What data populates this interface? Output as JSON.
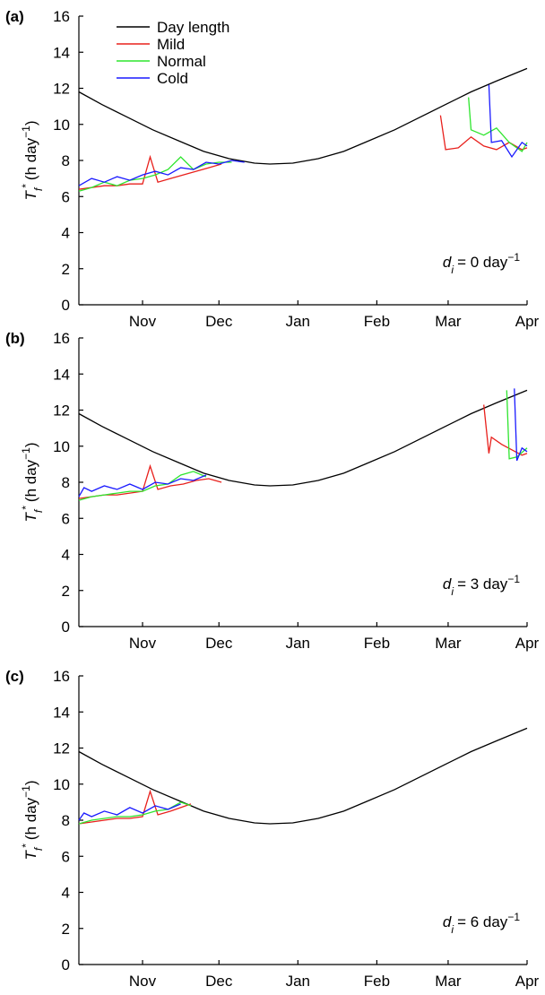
{
  "chart_data": [
    {
      "type": "line",
      "panel_label": "(a)",
      "y_label": {
        "symbol": "T",
        "subscript": "f",
        "superscript": "*",
        "text": "(h day",
        "unit_superscript": "−1",
        "close": ")"
      },
      "annotation": {
        "symbol": "d",
        "subscript": "i",
        "text": "= 0 day",
        "superscript": "−1"
      },
      "xlim": [
        6,
        182
      ],
      "ylim": [
        0,
        16
      ],
      "yticks": [
        0,
        2,
        4,
        6,
        8,
        10,
        12,
        14,
        16
      ],
      "xticks": [
        {
          "value": 31,
          "label": "Nov"
        },
        {
          "value": 61,
          "label": "Dec"
        },
        {
          "value": 92,
          "label": "Jan"
        },
        {
          "value": 123,
          "label": "Feb"
        },
        {
          "value": 151,
          "label": "Mar"
        },
        {
          "value": 182,
          "label": "Apr"
        }
      ],
      "legend": "upper-left",
      "series": [
        {
          "name": "Day length",
          "color": "#000000",
          "x": [
            6,
            15,
            25,
            35,
            45,
            55,
            65,
            75,
            81,
            90,
            100,
            110,
            120,
            130,
            140,
            150,
            160,
            170,
            182
          ],
          "values": [
            11.8,
            11.1,
            10.4,
            9.7,
            9.1,
            8.5,
            8.1,
            7.85,
            7.8,
            7.85,
            8.1,
            8.5,
            9.1,
            9.7,
            10.4,
            11.1,
            11.8,
            12.4,
            13.1
          ]
        },
        {
          "name": "Mild",
          "color": "#e8201c",
          "x": [
            6,
            11,
            16,
            21,
            26,
            31,
            34,
            37,
            42,
            47,
            52,
            57,
            62,
            null,
            148,
            150,
            155,
            160,
            165,
            170,
            175,
            180,
            182
          ],
          "values": [
            6.4,
            6.5,
            6.6,
            6.6,
            6.7,
            6.7,
            8.2,
            6.8,
            7.0,
            7.2,
            7.4,
            7.6,
            7.8,
            null,
            10.5,
            8.6,
            8.7,
            9.3,
            8.8,
            8.6,
            9.0,
            8.6,
            8.7
          ]
        },
        {
          "name": "Normal",
          "color": "#2ee52e",
          "x": [
            6,
            11,
            16,
            21,
            26,
            31,
            36,
            41,
            46,
            51,
            56,
            61,
            66,
            null,
            159,
            160,
            165,
            170,
            175,
            180,
            182
          ],
          "values": [
            6.3,
            6.5,
            6.8,
            6.6,
            6.9,
            7.0,
            7.2,
            7.5,
            8.2,
            7.5,
            7.8,
            7.9,
            7.9,
            null,
            11.5,
            9.7,
            9.4,
            9.8,
            9.0,
            8.5,
            9.0
          ]
        },
        {
          "name": "Cold",
          "color": "#1a1aff",
          "x": [
            6,
            11,
            16,
            21,
            26,
            31,
            36,
            41,
            46,
            51,
            56,
            61,
            66,
            71,
            null,
            167,
            168,
            172,
            176,
            180,
            182
          ],
          "values": [
            6.6,
            7.0,
            6.8,
            7.1,
            6.9,
            7.2,
            7.4,
            7.2,
            7.6,
            7.5,
            7.9,
            7.8,
            8.0,
            7.9,
            null,
            12.2,
            9.0,
            9.1,
            8.2,
            9.0,
            8.8
          ]
        }
      ]
    },
    {
      "type": "line",
      "panel_label": "(b)",
      "y_label": {
        "symbol": "T",
        "subscript": "f",
        "superscript": "*",
        "text": "(h day",
        "unit_superscript": "−1",
        "close": ")"
      },
      "annotation": {
        "symbol": "d",
        "subscript": "i",
        "text": "= 3 day",
        "superscript": "−1"
      },
      "xlim": [
        6,
        182
      ],
      "ylim": [
        0,
        16
      ],
      "yticks": [
        0,
        2,
        4,
        6,
        8,
        10,
        12,
        14,
        16
      ],
      "xticks": [
        {
          "value": 31,
          "label": "Nov"
        },
        {
          "value": 61,
          "label": "Dec"
        },
        {
          "value": 92,
          "label": "Jan"
        },
        {
          "value": 123,
          "label": "Feb"
        },
        {
          "value": 151,
          "label": "Mar"
        },
        {
          "value": 182,
          "label": "Apr"
        }
      ],
      "series": [
        {
          "color": "#000000",
          "x": [
            6,
            15,
            25,
            35,
            45,
            55,
            65,
            75,
            81,
            90,
            100,
            110,
            120,
            130,
            140,
            150,
            160,
            170,
            182
          ],
          "values": [
            11.8,
            11.1,
            10.4,
            9.7,
            9.1,
            8.5,
            8.1,
            7.85,
            7.8,
            7.85,
            8.1,
            8.5,
            9.1,
            9.7,
            10.4,
            11.1,
            11.8,
            12.4,
            13.1
          ]
        },
        {
          "color": "#e8201c",
          "x": [
            6,
            11,
            16,
            21,
            26,
            31,
            34,
            37,
            42,
            47,
            52,
            57,
            62,
            null,
            165,
            167,
            168,
            172,
            176,
            180,
            182
          ],
          "values": [
            7.1,
            7.2,
            7.3,
            7.3,
            7.4,
            7.5,
            8.9,
            7.6,
            7.8,
            7.9,
            8.1,
            8.2,
            8.0,
            null,
            12.3,
            9.6,
            10.5,
            10.1,
            9.8,
            9.5,
            9.6
          ]
        },
        {
          "color": "#2ee52e",
          "x": [
            6,
            11,
            16,
            21,
            26,
            31,
            36,
            41,
            46,
            51,
            56,
            null,
            174,
            175,
            178,
            182
          ],
          "values": [
            7.0,
            7.2,
            7.3,
            7.4,
            7.5,
            7.5,
            7.8,
            7.9,
            8.4,
            8.6,
            8.3,
            null,
            13.1,
            9.3,
            9.4,
            9.9
          ]
        },
        {
          "color": "#1a1aff",
          "x": [
            6,
            8,
            11,
            16,
            21,
            26,
            31,
            36,
            41,
            46,
            51,
            56,
            null,
            177,
            178,
            180,
            182
          ],
          "values": [
            7.2,
            7.7,
            7.5,
            7.8,
            7.6,
            7.9,
            7.6,
            8.0,
            7.9,
            8.2,
            8.1,
            8.4,
            null,
            13.2,
            9.2,
            9.9,
            9.7
          ]
        }
      ]
    },
    {
      "type": "line",
      "panel_label": "(c)",
      "y_label": {
        "symbol": "T",
        "subscript": "f",
        "superscript": "*",
        "text": "(h day",
        "unit_superscript": "−1",
        "close": ")"
      },
      "annotation": {
        "symbol": "d",
        "subscript": "i",
        "text": "= 6 day",
        "superscript": "−1"
      },
      "xlim": [
        6,
        182
      ],
      "ylim": [
        0,
        16
      ],
      "yticks": [
        0,
        2,
        4,
        6,
        8,
        10,
        12,
        14,
        16
      ],
      "xticks": [
        {
          "value": 31,
          "label": "Nov"
        },
        {
          "value": 61,
          "label": "Dec"
        },
        {
          "value": 92,
          "label": "Jan"
        },
        {
          "value": 123,
          "label": "Feb"
        },
        {
          "value": 151,
          "label": "Mar"
        },
        {
          "value": 182,
          "label": "Apr"
        }
      ],
      "series": [
        {
          "color": "#000000",
          "x": [
            6,
            15,
            25,
            35,
            45,
            55,
            65,
            75,
            81,
            90,
            100,
            110,
            120,
            130,
            140,
            150,
            160,
            170,
            182
          ],
          "values": [
            11.8,
            11.1,
            10.4,
            9.7,
            9.1,
            8.5,
            8.1,
            7.85,
            7.8,
            7.85,
            8.1,
            8.5,
            9.1,
            9.7,
            10.4,
            11.1,
            11.8,
            12.4,
            13.1
          ]
        },
        {
          "color": "#e8201c",
          "x": [
            6,
            11,
            16,
            21,
            26,
            31,
            34,
            37,
            42,
            46,
            50
          ],
          "values": [
            7.8,
            7.9,
            8.0,
            8.1,
            8.1,
            8.2,
            9.6,
            8.3,
            8.5,
            8.7,
            8.9
          ]
        },
        {
          "color": "#2ee52e",
          "x": [
            6,
            11,
            16,
            21,
            26,
            31,
            36,
            41,
            46,
            50
          ],
          "values": [
            7.8,
            8.0,
            8.1,
            8.2,
            8.2,
            8.3,
            8.5,
            8.6,
            9.0,
            8.8
          ]
        },
        {
          "color": "#1a1aff",
          "x": [
            6,
            8,
            11,
            16,
            21,
            26,
            31,
            36,
            41,
            46
          ],
          "values": [
            8.0,
            8.4,
            8.2,
            8.5,
            8.3,
            8.7,
            8.4,
            8.8,
            8.6,
            8.9
          ]
        }
      ]
    }
  ]
}
